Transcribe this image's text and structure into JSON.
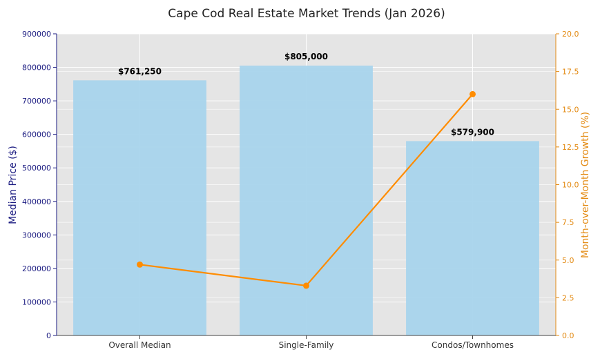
{
  "colors": {
    "plot_bg": "#e5e5e5",
    "grid": "#ffffff",
    "bar": "#a8d4ec",
    "line": "#ff8c00",
    "left_axis": "#1a1a80",
    "right_axis": "#e38a12"
  },
  "chart_data": {
    "type": "bar",
    "title": "Cape Cod Real Estate Market Trends (Jan 2026)",
    "categories": [
      "Overall Median",
      "Single-Family",
      "Condos/Townhomes"
    ],
    "series": [
      {
        "name": "Median Price ($)",
        "type": "bar",
        "axis": "left",
        "values": [
          761250,
          805000,
          579900
        ],
        "labels": [
          "$761,250",
          "$805,000",
          "$579,900"
        ]
      },
      {
        "name": "Month-over-Month Growth (%)",
        "type": "line",
        "axis": "right",
        "values": [
          4.7,
          3.3,
          16.0
        ]
      }
    ],
    "ylabel": "Median Price ($)",
    "ylabel_right": "Month-over-Month Growth (%)",
    "ylim": [
      0,
      900000
    ],
    "ylim_right": [
      0,
      20
    ],
    "yticks": [
      0,
      100000,
      200000,
      300000,
      400000,
      500000,
      600000,
      700000,
      800000,
      900000
    ],
    "ytick_labels": [
      "0",
      "100000",
      "200000",
      "300000",
      "400000",
      "500000",
      "600000",
      "700000",
      "800000",
      "900000"
    ],
    "yticks_right": [
      0,
      2.5,
      5,
      7.5,
      10,
      12.5,
      15,
      17.5,
      20
    ],
    "ytick_labels_right": [
      "0.0",
      "2.5",
      "5.0",
      "7.5",
      "10.0",
      "12.5",
      "15.0",
      "17.5",
      "20.0"
    ],
    "grid": true,
    "legend": "none"
  }
}
